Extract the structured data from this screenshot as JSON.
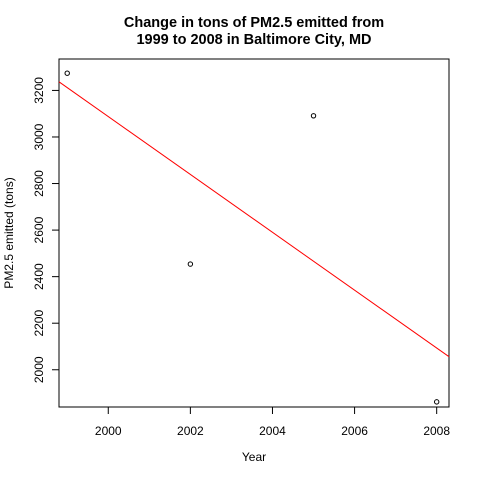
{
  "chart_data": {
    "type": "scatter",
    "title_line1": "Change in tons of PM2.5 emitted from",
    "title_line2": "1999 to 2008 in Baltimore City, MD",
    "xlabel": "Year",
    "ylabel": "PM2.5 emitted (tons)",
    "xlim": [
      1998.8,
      2008.3
    ],
    "ylim": [
      1840,
      3335
    ],
    "xticks": [
      2000,
      2002,
      2004,
      2006,
      2008
    ],
    "yticks": [
      2000,
      2200,
      2400,
      2600,
      2800,
      3000,
      3200
    ],
    "grid": false,
    "points": [
      {
        "x": 1999,
        "y": 3274
      },
      {
        "x": 2002,
        "y": 2454
      },
      {
        "x": 2005,
        "y": 3091
      },
      {
        "x": 2008,
        "y": 1862
      }
    ],
    "trend_line": {
      "intercept_at_1999": 3212,
      "slope_per_year": -124.3,
      "color": "#ff0000"
    },
    "point_color": "#000000"
  }
}
